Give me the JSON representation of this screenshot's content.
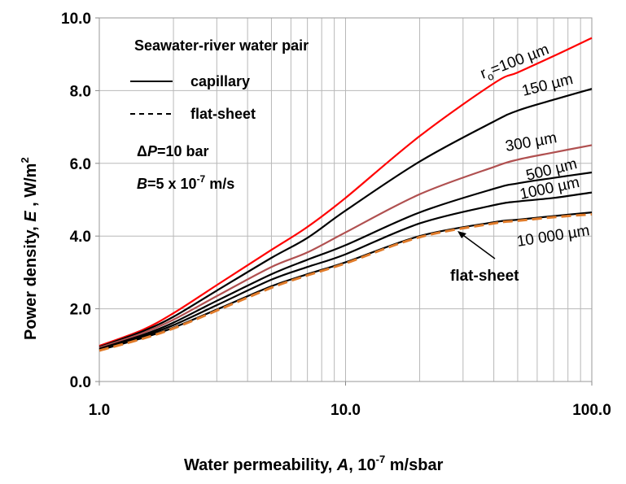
{
  "chart_data": {
    "type": "line",
    "title": "",
    "xlabel": "Water permeability, A, 10⁻⁷ m/sbar",
    "xlabel_parts": {
      "pre": "Water permeability, ",
      "var": "A",
      "mid": ", 10",
      "exp": "-7",
      "post": " m/sbar"
    },
    "ylabel": "Power density, E, W/m²",
    "ylabel_parts": {
      "pre": "Power  density,  ",
      "var": "E",
      "post": " ,  W/m",
      "exp": "2"
    },
    "xscale": "log",
    "xlim": [
      1,
      100
    ],
    "ylim": [
      0,
      10
    ],
    "x_tick_labels": [
      "1.0",
      "10.0",
      "100.0"
    ],
    "y_ticks": [
      0,
      2,
      4,
      6,
      8,
      10
    ],
    "y_tick_labels": [
      "0.0",
      "2.0",
      "4.0",
      "6.0",
      "8.0",
      "10.0"
    ],
    "grid": "vertical log minor and horizontal major",
    "legend": {
      "title": "Seawater-river water pair",
      "capillary": "capillary",
      "flat_sheet": "flat-sheet",
      "dp_symbol": "Δ",
      "dp_var": "P",
      "dp_value": "=10 bar",
      "b_var": "B",
      "b_value": "=5 x 10",
      "b_exp": "-7",
      "b_unit": " m/s"
    },
    "annotation": "flat-sheet",
    "series": [
      {
        "name": "r_o=100 µm",
        "label_main": "r",
        "label_sub": "o",
        "label_rest": "=100 µm",
        "style": "solid",
        "color": "#ff0000",
        "x": [
          1,
          1.5,
          2,
          3,
          5,
          7,
          10,
          20,
          40,
          50,
          70,
          100
        ],
        "y": [
          0.98,
          1.42,
          1.88,
          2.65,
          3.62,
          4.25,
          5.05,
          6.75,
          8.2,
          8.5,
          8.95,
          9.45
        ]
      },
      {
        "name": "150 µm",
        "label_main": "150 µm",
        "style": "solid",
        "color": "#000000",
        "x": [
          1,
          1.5,
          2,
          3,
          5,
          7,
          10,
          20,
          40,
          50,
          70,
          100
        ],
        "y": [
          0.95,
          1.38,
          1.78,
          2.5,
          3.4,
          3.95,
          4.7,
          6.05,
          7.15,
          7.45,
          7.75,
          8.05
        ]
      },
      {
        "name": "300 µm",
        "label_main": "300  µm",
        "style": "solid",
        "color": "#b05050",
        "x": [
          1,
          1.5,
          2,
          3,
          5,
          7,
          10,
          20,
          40,
          50,
          70,
          100
        ],
        "y": [
          0.93,
          1.33,
          1.7,
          2.35,
          3.15,
          3.55,
          4.1,
          5.15,
          5.9,
          6.1,
          6.3,
          6.5
        ]
      },
      {
        "name": "500 µm",
        "label_main": "500  µm",
        "style": "solid",
        "color": "#000000",
        "x": [
          1,
          1.5,
          2,
          3,
          5,
          7,
          10,
          20,
          40,
          50,
          70,
          100
        ],
        "y": [
          0.9,
          1.28,
          1.62,
          2.22,
          2.95,
          3.35,
          3.75,
          4.65,
          5.3,
          5.45,
          5.6,
          5.75
        ]
      },
      {
        "name": "1000 µm",
        "label_main": "1000 µm",
        "style": "solid",
        "color": "#000000",
        "x": [
          1,
          1.5,
          2,
          3,
          5,
          7,
          10,
          20,
          40,
          50,
          70,
          100
        ],
        "y": [
          0.88,
          1.24,
          1.55,
          2.1,
          2.8,
          3.15,
          3.5,
          4.35,
          4.85,
          4.95,
          5.05,
          5.2
        ]
      },
      {
        "name": "10 000 µm",
        "label_main": "10 000 µm",
        "style": "solid",
        "color": "#000000",
        "x": [
          1,
          1.5,
          2,
          3,
          5,
          7,
          10,
          20,
          40,
          50,
          70,
          100
        ],
        "y": [
          0.86,
          1.2,
          1.48,
          1.98,
          2.62,
          2.95,
          3.28,
          4.0,
          4.38,
          4.45,
          4.55,
          4.65
        ]
      },
      {
        "name": "flat-sheet",
        "style": "dashed",
        "color": "#e07b2a",
        "x": [
          1,
          1.5,
          2,
          3,
          5,
          7,
          10,
          20,
          40,
          50,
          70,
          100
        ],
        "y": [
          0.85,
          1.18,
          1.46,
          1.95,
          2.58,
          2.92,
          3.25,
          3.97,
          4.35,
          4.42,
          4.52,
          4.6
        ]
      }
    ]
  }
}
